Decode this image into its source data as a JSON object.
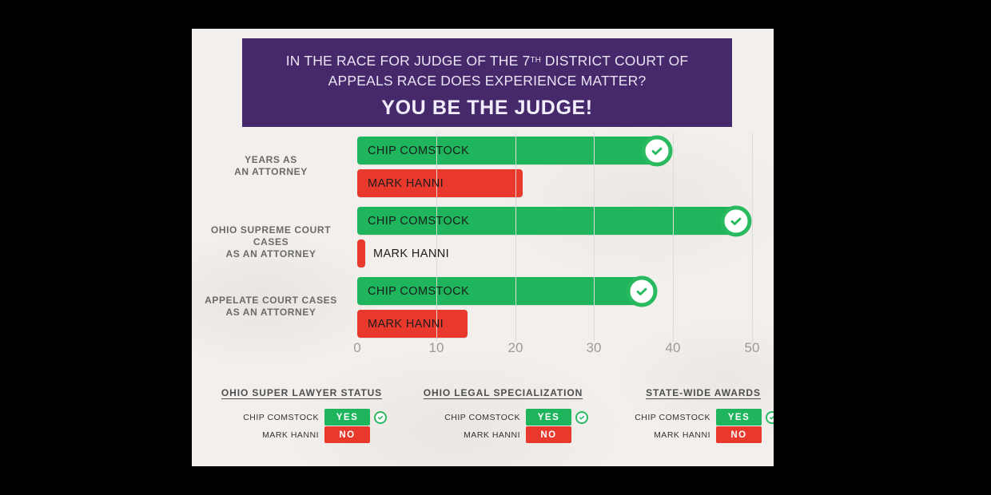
{
  "colors": {
    "background": "#000000",
    "canvas": "#f2efec",
    "header_purple": "#46296b",
    "comstock_green": "#1eb55c",
    "hanni_red": "#e9392c",
    "badge_ring_green": "#29ba60",
    "grid_gray": "#dedad5",
    "tick_gray": "#9b9b9b"
  },
  "header": {
    "line1_prefix": "IN THE RACE FOR JUDGE OF THE 7",
    "line1_sup": "TH",
    "line1_suffix": " DISTRICT COURT OF",
    "line2": "APPEALS RACE DOES EXPERIENCE MATTER?",
    "line3": "YOU BE THE JUDGE!"
  },
  "chart_data": {
    "type": "bar",
    "orientation": "horizontal",
    "title": "",
    "xlabel": "",
    "ylabel": "",
    "xlim": [
      0,
      50
    ],
    "x_ticks": [
      0,
      10,
      20,
      30,
      40,
      50
    ],
    "grid": "vertical",
    "categories": [
      "YEARS AS AN ATTORNEY",
      "OHIO SUPREME COURT CASES AS AN ATTORNEY",
      "APPELATE COURT CASES AS AN ATTORNEY"
    ],
    "categories_lines": [
      [
        "YEARS AS",
        "AN ATTORNEY"
      ],
      [
        "OHIO SUPREME COURT CASES",
        "AS AN ATTORNEY"
      ],
      [
        "APPELATE COURT CASES",
        "AS AN ATTORNEY"
      ]
    ],
    "series": [
      {
        "name": "CHIP COMSTOCK",
        "color": "#1eb55c",
        "values": [
          38,
          48,
          36
        ],
        "winner_checkmark": true
      },
      {
        "name": "MARK HANNI",
        "color": "#e9392c",
        "values": [
          21,
          1,
          14
        ],
        "winner_checkmark": false
      }
    ]
  },
  "tables": {
    "items": [
      {
        "title": "OHIO SUPER LAWYER STATUS",
        "rows": [
          {
            "name": "CHIP COMSTOCK",
            "value": "YES"
          },
          {
            "name": "MARK HANNI",
            "value": "NO"
          }
        ]
      },
      {
        "title": "OHIO LEGAL SPECIALIZATION",
        "rows": [
          {
            "name": "CHIP COMSTOCK",
            "value": "YES"
          },
          {
            "name": "MARK HANNI",
            "value": "NO"
          }
        ]
      },
      {
        "title": "STATE-WIDE AWARDS",
        "rows": [
          {
            "name": "CHIP COMSTOCK",
            "value": "YES"
          },
          {
            "name": "MARK HANNI",
            "value": "NO"
          }
        ]
      }
    ]
  }
}
